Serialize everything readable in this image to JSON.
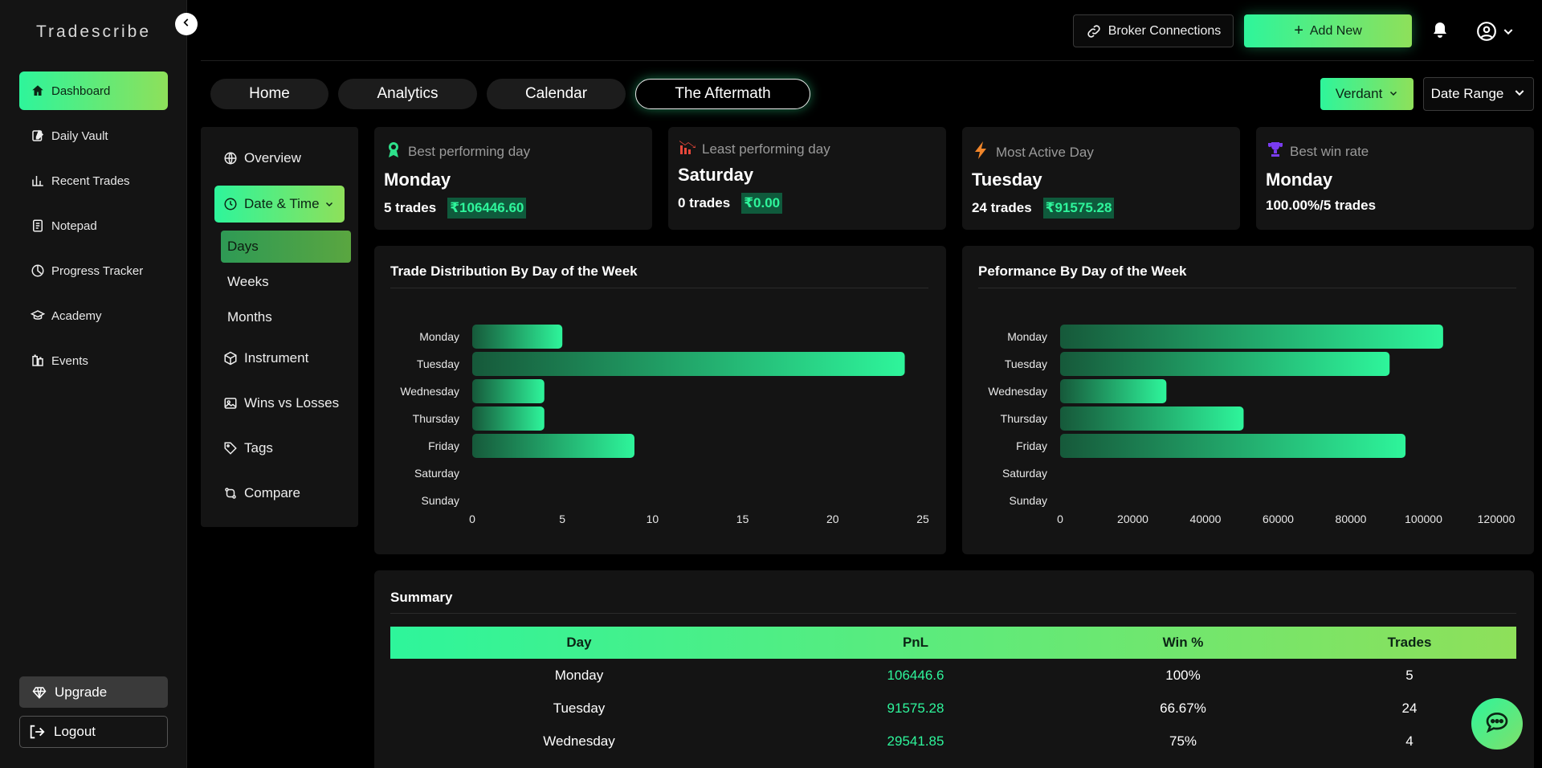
{
  "sidebar": {
    "brand": "Tradescribe",
    "items": [
      {
        "label": "Dashboard",
        "icon": "home-icon",
        "active": true
      },
      {
        "label": "Daily Vault",
        "icon": "edit-icon"
      },
      {
        "label": "Recent Trades",
        "icon": "bar-chart-icon"
      },
      {
        "label": "Notepad",
        "icon": "notepad-icon"
      },
      {
        "label": "Progress Tracker",
        "icon": "progress-icon"
      },
      {
        "label": "Academy",
        "icon": "graduation-cap-icon"
      },
      {
        "label": "Events",
        "icon": "events-icon"
      }
    ],
    "upgrade": "Upgrade",
    "logout": "Logout"
  },
  "topbar": {
    "broker": "Broker Connections",
    "add_new": "Add New"
  },
  "tabs": [
    {
      "label": "Home"
    },
    {
      "label": "Analytics"
    },
    {
      "label": "Calendar"
    },
    {
      "label": "The Aftermath",
      "active": true
    }
  ],
  "filters": {
    "account": "Verdant",
    "date_range": "Date Range"
  },
  "subnav": {
    "overview": "Overview",
    "date_time": "Date & Time",
    "children": [
      "Days",
      "Weeks",
      "Months"
    ],
    "instrument": "Instrument",
    "wins_losses": "Wins vs Losses",
    "tags": "Tags",
    "compare": "Compare"
  },
  "stats": [
    {
      "label": "Best performing day",
      "day": "Monday",
      "trades": "5 trades",
      "value": "₹106446.60",
      "icon": "award-icon",
      "color": "#2ee08a"
    },
    {
      "label": "Least performing day",
      "day": "Saturday",
      "trades": "0 trades",
      "value": "₹0.00",
      "icon": "chart-down-icon",
      "color": "#e8473a"
    },
    {
      "label": "Most Active Day",
      "day": "Tuesday",
      "trades": "24 trades",
      "value": "₹91575.28",
      "icon": "lightning-icon",
      "color": "#f0852a"
    },
    {
      "label": "Best win rate",
      "day": "Monday",
      "trades": "100.00%/5 trades",
      "icon": "trophy-icon",
      "color": "#7a3cf0"
    }
  ],
  "charts": {
    "distribution_title": "Trade Distribution By Day of the Week",
    "performance_title": "Peformance By Day of the Week"
  },
  "chart_data": [
    {
      "type": "bar",
      "orientation": "horizontal",
      "title": "Trade Distribution By Day of the Week",
      "categories": [
        "Monday",
        "Tuesday",
        "Wednesday",
        "Thursday",
        "Friday",
        "Saturday",
        "Sunday"
      ],
      "values": [
        5,
        24,
        4,
        4,
        9,
        0,
        0
      ],
      "xlim": [
        0,
        25
      ],
      "xticks": [
        "0",
        "5",
        "10",
        "15",
        "20",
        "25"
      ]
    },
    {
      "type": "bar",
      "orientation": "horizontal",
      "title": "Peformance By Day of the Week",
      "categories": [
        "Monday",
        "Tuesday",
        "Wednesday",
        "Thursday",
        "Friday",
        "Saturday",
        "Sunday"
      ],
      "values": [
        106446.6,
        91575.28,
        29541.85,
        51000,
        96000,
        0,
        0
      ],
      "xlim": [
        0,
        125000
      ],
      "xticks": [
        "0",
        "20000",
        "40000",
        "60000",
        "80000",
        "100000",
        "120000"
      ]
    }
  ],
  "summary": {
    "title": "Summary",
    "headers": [
      "Day",
      "PnL",
      "Win %",
      "Trades"
    ],
    "rows": [
      {
        "day": "Monday",
        "pnl": "106446.6",
        "win": "100%",
        "trades": "5"
      },
      {
        "day": "Tuesday",
        "pnl": "91575.28",
        "win": "66.67%",
        "trades": "24"
      },
      {
        "day": "Wednesday",
        "pnl": "29541.85",
        "win": "75%",
        "trades": "4"
      }
    ]
  }
}
